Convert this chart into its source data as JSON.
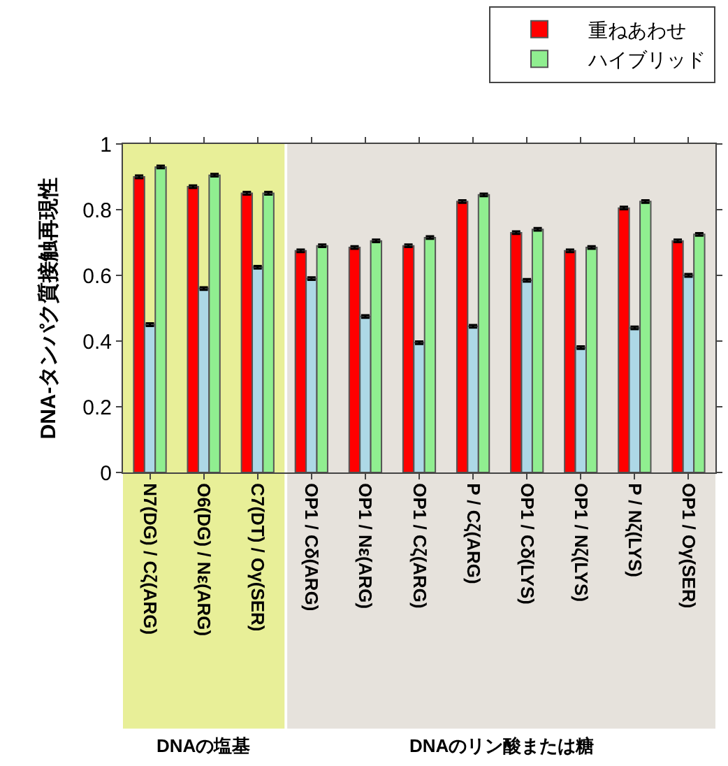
{
  "chart_data": {
    "type": "bar",
    "ylabel": "DNA-タンパク質接触再現性",
    "categories": [
      "N7(DG) / Cζ(ARG)",
      "O6(DG) / Nε(ARG)",
      "C7(DT) / Oγ(SER)",
      "OP1 / Cδ(ARG)",
      "OP1 / Nε(ARG)",
      "OP1 / Cζ(ARG)",
      "P / Cζ(ARG)",
      "OP1 / Cδ(LYS)",
      "OP1 / Nζ(LYS)",
      "P / Nζ(LYS)",
      "OP1 / Oγ(SER)"
    ],
    "series": [
      {
        "name": "重ねあわせ",
        "color": "#ff0000",
        "values": [
          0.9,
          0.87,
          0.85,
          0.675,
          0.685,
          0.69,
          0.825,
          0.73,
          0.675,
          0.805,
          0.705
        ],
        "errors": [
          0.004,
          0.004,
          0.004,
          0.004,
          0.004,
          0.004,
          0.004,
          0.004,
          0.004,
          0.004,
          0.004
        ]
      },
      {
        "color": "#add8e6",
        "values": [
          0.45,
          0.56,
          0.625,
          0.59,
          0.475,
          0.395,
          0.445,
          0.585,
          0.38,
          0.44,
          0.6
        ],
        "errors": [
          0.004,
          0.004,
          0.004,
          0.004,
          0.004,
          0.004,
          0.004,
          0.004,
          0.004,
          0.004,
          0.004
        ]
      },
      {
        "name": "ハイブリッド",
        "color": "#90ee90",
        "values": [
          0.93,
          0.905,
          0.85,
          0.69,
          0.705,
          0.715,
          0.845,
          0.74,
          0.685,
          0.825,
          0.725
        ],
        "errors": [
          0.004,
          0.004,
          0.004,
          0.004,
          0.004,
          0.004,
          0.004,
          0.004,
          0.004,
          0.004,
          0.004
        ]
      }
    ],
    "ylim": [
      0,
      1
    ],
    "yticks": [
      0,
      0.2,
      0.4,
      0.6,
      0.8,
      1
    ],
    "bands": [
      {
        "axis": "x",
        "from": "N7(DG) / Cζ(ARG)",
        "to": "C7(DT) / Oγ(SER)",
        "label": "DNAの塩基",
        "color": "#e8ef98"
      },
      {
        "axis": "x",
        "from": "OP1 / Cδ(ARG)",
        "to": "OP1 / Oγ(SER)",
        "label": "DNAのリン酸または糖",
        "color": "#e6e2dc"
      }
    ],
    "grid": false,
    "legend": "top right"
  }
}
